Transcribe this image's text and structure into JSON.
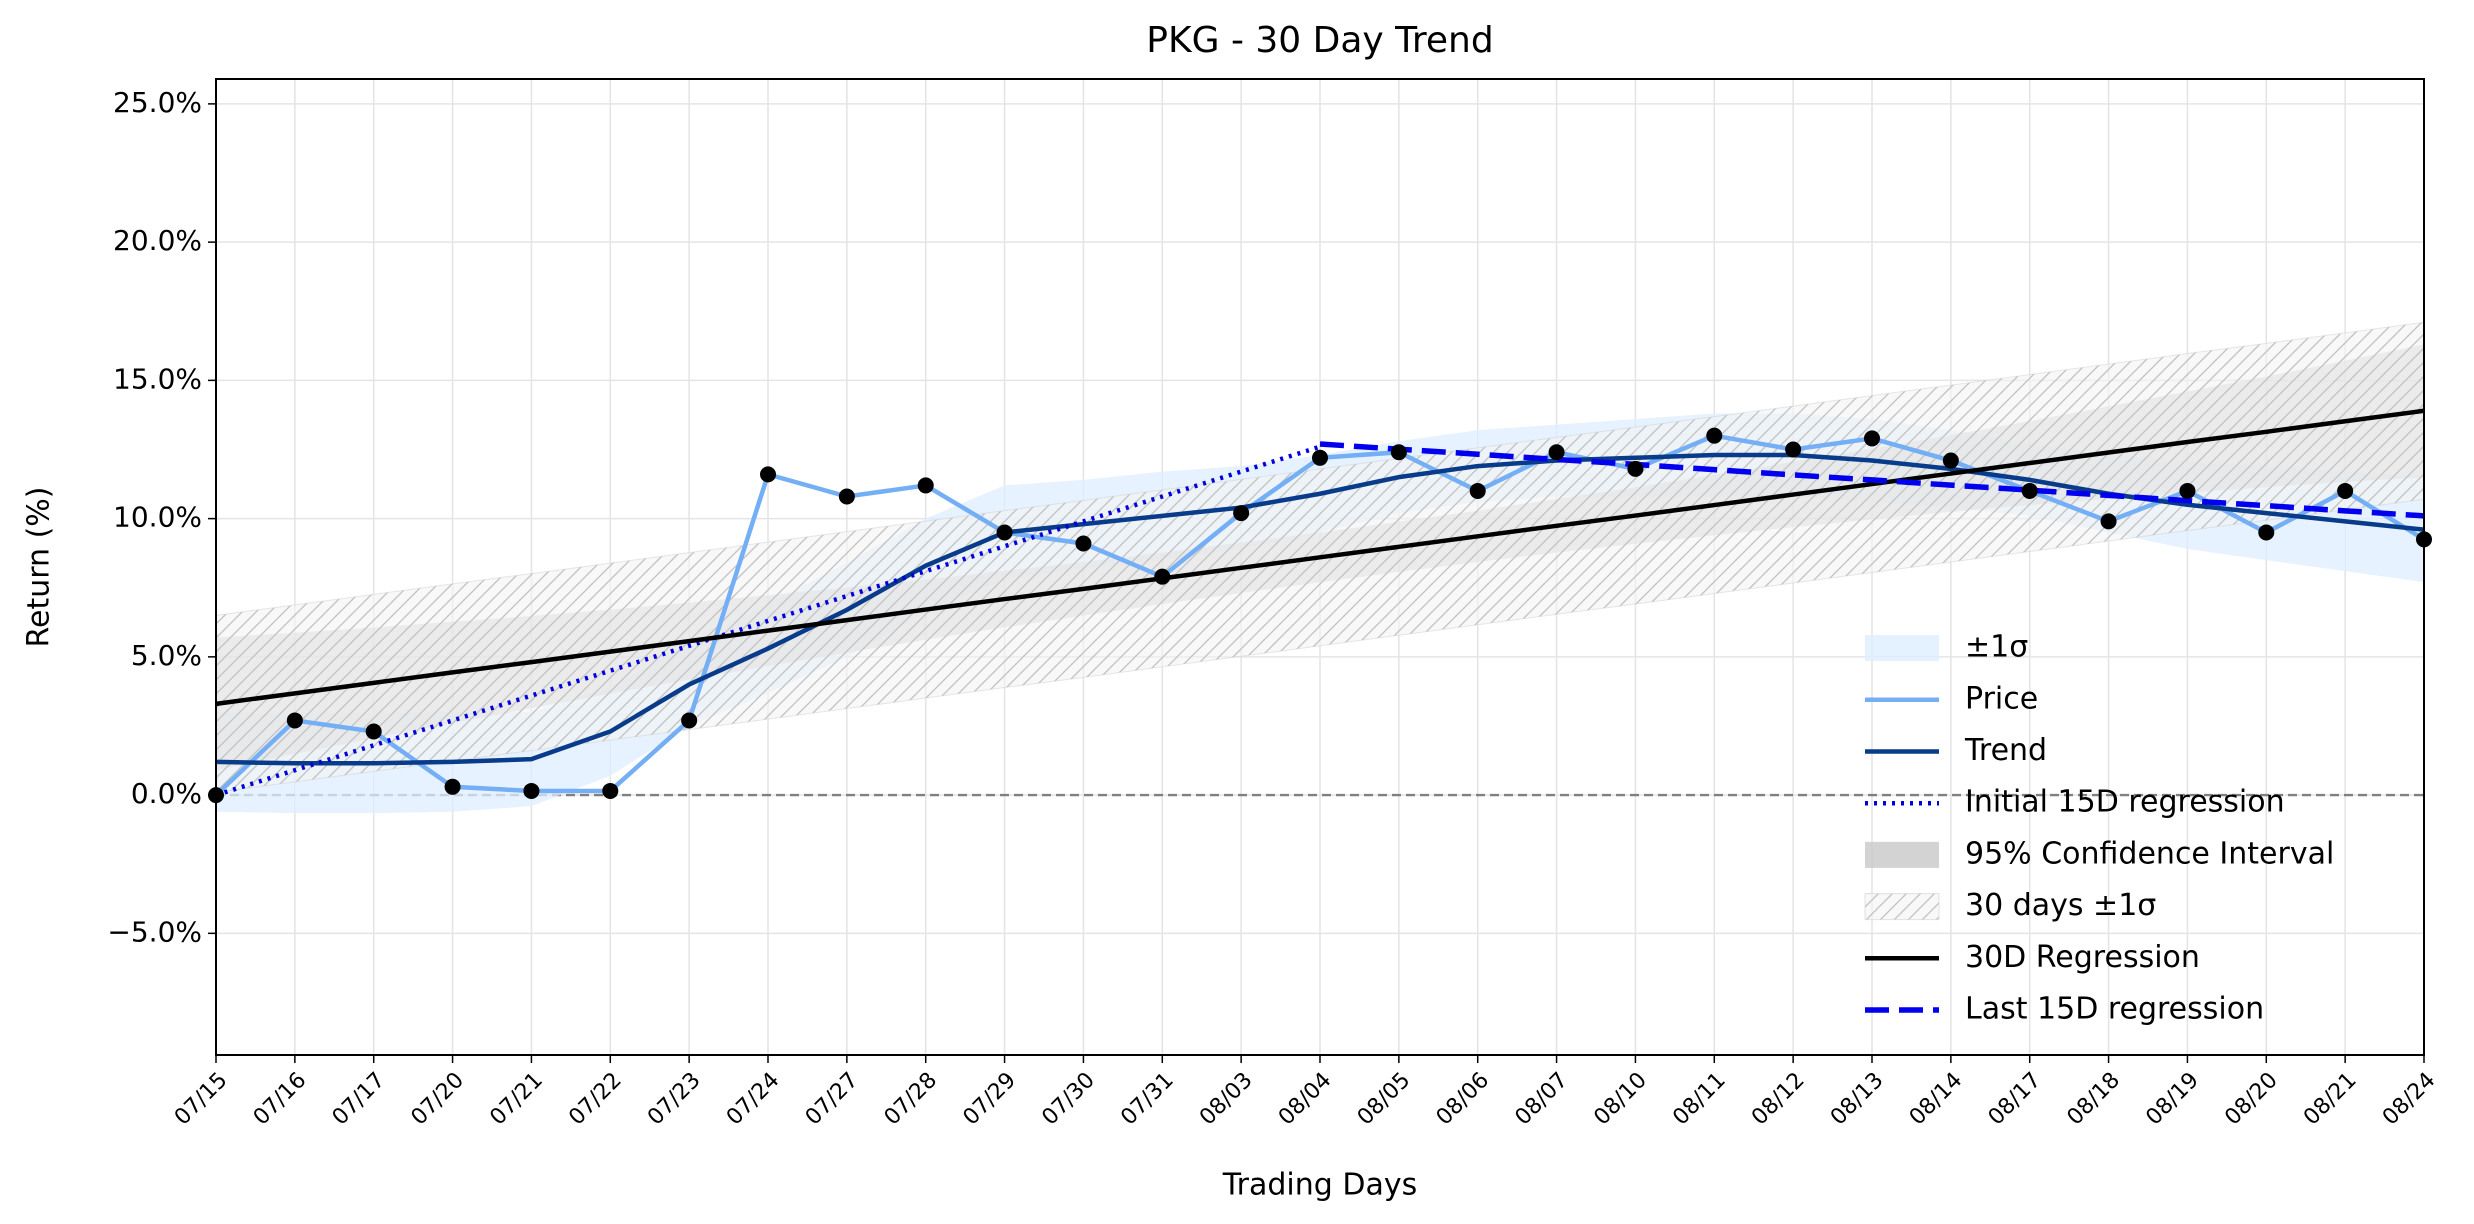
{
  "chart_data": {
    "type": "line",
    "title": "PKG - 30 Day Trend",
    "xlabel": "Trading Days",
    "ylabel": "Return (%)",
    "categories": [
      "07/15",
      "07/16",
      "07/17",
      "07/20",
      "07/21",
      "07/22",
      "07/23",
      "07/24",
      "07/27",
      "07/28",
      "07/29",
      "07/30",
      "07/31",
      "08/03",
      "08/04",
      "08/05",
      "08/06",
      "08/07",
      "08/10",
      "08/11",
      "08/12",
      "08/13",
      "08/14",
      "08/17",
      "08/18",
      "08/19",
      "08/20",
      "08/21",
      "08/24"
    ],
    "ylim": [
      -9.4,
      25.9
    ],
    "yticks": [
      {
        "value": -5,
        "label": "−5.0%"
      },
      {
        "value": 0,
        "label": "0.0%"
      },
      {
        "value": 5,
        "label": "5.0%"
      },
      {
        "value": 10,
        "label": "10.0%"
      },
      {
        "value": 15,
        "label": "15.0%"
      },
      {
        "value": 20,
        "label": "20.0%"
      },
      {
        "value": 25,
        "label": "25.0%"
      }
    ],
    "grid": true,
    "reference_line": 0,
    "legend": "lower right",
    "series": [
      {
        "name": "±1σ",
        "kind": "band",
        "color": "#ddeeff",
        "upper": [
          3.0,
          2.95,
          2.95,
          3.0,
          3.0,
          3.9,
          5.5,
          6.9,
          8.4,
          10.0,
          11.2,
          11.4,
          11.7,
          11.9,
          12.3,
          12.8,
          13.2,
          13.4,
          13.6,
          13.8,
          13.8,
          13.6,
          13.2,
          12.7,
          12.3,
          12.1,
          11.9,
          11.7,
          11.5
        ],
        "lower": [
          -0.6,
          -0.65,
          -0.65,
          -0.6,
          -0.4,
          0.7,
          2.5,
          3.7,
          5.0,
          6.6,
          7.8,
          8.2,
          8.5,
          8.9,
          9.5,
          10.2,
          10.6,
          10.8,
          10.8,
          10.8,
          10.8,
          10.6,
          10.4,
          10.1,
          9.5,
          8.9,
          8.5,
          8.1,
          7.7
        ]
      },
      {
        "name": "Price",
        "kind": "line",
        "color": "#74aef5",
        "markers": true,
        "values": [
          0,
          2.7,
          2.3,
          0.3,
          0.15,
          0.15,
          2.7,
          11.6,
          10.8,
          11.2,
          9.5,
          9.1,
          7.9,
          10.2,
          12.2,
          12.4,
          11.0,
          12.4,
          11.8,
          13.0,
          12.5,
          12.9,
          12.1,
          11.0,
          9.9,
          11.0,
          9.5,
          11.0,
          9.25
        ]
      },
      {
        "name": "Trend",
        "kind": "line",
        "color": "#083b8a",
        "values": [
          1.2,
          1.15,
          1.15,
          1.2,
          1.3,
          2.3,
          4.0,
          5.3,
          6.7,
          8.3,
          9.5,
          9.8,
          10.1,
          10.4,
          10.9,
          11.5,
          11.9,
          12.1,
          12.2,
          12.3,
          12.3,
          12.1,
          11.8,
          11.4,
          10.9,
          10.5,
          10.2,
          9.9,
          9.6
        ]
      },
      {
        "name": "Initial 15D regression",
        "kind": "line",
        "style": "dotted",
        "color": "#0000dd",
        "values": [
          0,
          0.9,
          1.8,
          2.7,
          3.6,
          4.5,
          5.4,
          6.3,
          7.2,
          8.1,
          9.0,
          9.9,
          10.8,
          11.7,
          12.6,
          null,
          null,
          null,
          null,
          null,
          null,
          null,
          null,
          null,
          null,
          null,
          null,
          null,
          null
        ]
      },
      {
        "name": "95% Confidence Interval",
        "kind": "band",
        "color": "#c8c8c8",
        "upper": [
          5.7,
          5.87,
          6.06,
          6.27,
          6.48,
          6.71,
          6.96,
          7.23,
          7.51,
          7.8,
          8.11,
          8.43,
          8.77,
          9.13,
          9.5,
          9.89,
          10.29,
          10.71,
          11.13,
          11.58,
          12.05,
          12.53,
          13.02,
          13.53,
          14.06,
          14.6,
          15.14,
          15.71,
          16.3
        ],
        "lower": [
          0.9,
          1.49,
          2.06,
          2.61,
          3.14,
          3.67,
          4.18,
          4.67,
          5.15,
          5.62,
          6.07,
          6.49,
          6.91,
          7.31,
          7.7,
          8.07,
          8.43,
          8.77,
          9.09,
          9.4,
          9.69,
          9.97,
          10.24,
          10.49,
          10.72,
          10.94,
          11.14,
          11.33,
          11.5
        ]
      },
      {
        "name": "30 days ±1σ",
        "kind": "band",
        "hatch": true,
        "color": "#d0d0d0",
        "upper": [
          6.5,
          6.88,
          7.26,
          7.64,
          8.01,
          8.39,
          8.77,
          9.15,
          9.53,
          9.91,
          10.29,
          10.66,
          11.04,
          11.42,
          11.8,
          12.18,
          12.56,
          12.94,
          13.31,
          13.69,
          14.07,
          14.45,
          14.83,
          15.21,
          15.59,
          15.97,
          16.34,
          16.72,
          17.1
        ],
        "lower": [
          0.1,
          0.48,
          0.86,
          1.24,
          1.61,
          1.99,
          2.37,
          2.75,
          3.13,
          3.51,
          3.89,
          4.26,
          4.64,
          5.02,
          5.4,
          5.78,
          6.16,
          6.54,
          6.91,
          7.29,
          7.67,
          8.05,
          8.43,
          8.81,
          9.19,
          9.57,
          9.94,
          10.32,
          10.7
        ]
      },
      {
        "name": "30D Regression",
        "kind": "line",
        "color": "#000000",
        "values": [
          3.3,
          3.68,
          4.06,
          4.44,
          4.81,
          5.19,
          5.57,
          5.95,
          6.33,
          6.71,
          7.09,
          7.46,
          7.84,
          8.22,
          8.6,
          8.98,
          9.36,
          9.74,
          10.11,
          10.49,
          10.87,
          11.25,
          11.63,
          12.01,
          12.39,
          12.77,
          13.14,
          13.52,
          13.9
        ]
      },
      {
        "name": "Last 15D regression",
        "kind": "line",
        "style": "dashed",
        "color": "#0000ee",
        "values": [
          null,
          null,
          null,
          null,
          null,
          null,
          null,
          null,
          null,
          null,
          null,
          null,
          null,
          null,
          12.7,
          12.51,
          12.33,
          12.14,
          11.96,
          11.77,
          11.58,
          11.4,
          11.21,
          11.03,
          10.84,
          10.65,
          10.47,
          10.28,
          10.1
        ]
      }
    ]
  }
}
